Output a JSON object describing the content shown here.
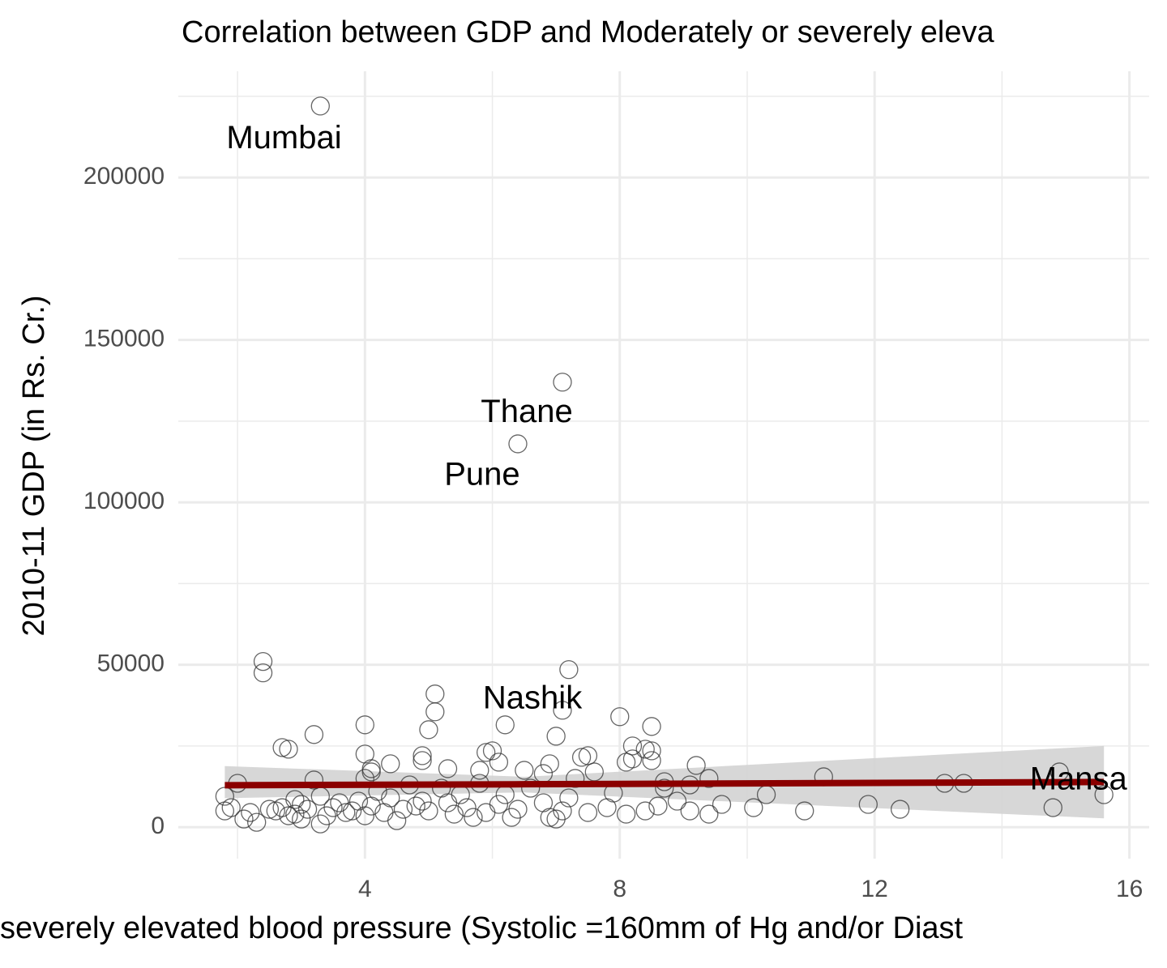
{
  "chart_data": {
    "type": "scatter",
    "title": "Correlation between GDP and Moderately or severely eleva",
    "x_label": "severely elevated blood pressure (Systolic =160mm of Hg and/or Diast",
    "y_label": "2010-11 GDP (in Rs. Cr.)",
    "xlim": [
      1.07,
      16.31
    ],
    "ylim": [
      -9700,
      232700
    ],
    "xticks": [
      4,
      8,
      12,
      16
    ],
    "yticks": [
      0,
      50000,
      100000,
      150000,
      200000
    ],
    "grid": true,
    "minor_grid": true,
    "series": [
      {
        "color": "#333333",
        "x": [
          3.3,
          7.1,
          6.4,
          7.1,
          14.9,
          2.4,
          2.4,
          7.2,
          5.1,
          5.1,
          4.0,
          5.0,
          6.2,
          7.0,
          8.0,
          8.5,
          3.2,
          2.7,
          2.8,
          4.0,
          4.9,
          4.9,
          5.9,
          6.0,
          7.4,
          7.5,
          8.2,
          8.4,
          8.5,
          8.5,
          8.1,
          8.2,
          4.1,
          4.1,
          4.0,
          4.4,
          5.3,
          5.8,
          6.1,
          6.5,
          6.8,
          6.9,
          7.6,
          9.2,
          9.4,
          9.1,
          11.2,
          13.1,
          13.4,
          15.6,
          14.8,
          11.9,
          12.4,
          10.9,
          10.3,
          10.1,
          9.6,
          9.4,
          9.1,
          8.9,
          8.7,
          8.6,
          8.4,
          8.1,
          7.9,
          7.8,
          7.5,
          7.2,
          7.1,
          6.9,
          6.8,
          6.6,
          6.4,
          6.3,
          6.2,
          6.1,
          5.9,
          5.8,
          5.7,
          5.6,
          5.5,
          5.4,
          5.3,
          5.2,
          5.0,
          4.9,
          4.8,
          4.7,
          4.6,
          4.5,
          4.4,
          4.3,
          4.2,
          4.1,
          4.0,
          3.9,
          3.8,
          3.7,
          3.6,
          3.5,
          3.4,
          3.3,
          3.3,
          3.2,
          3.1,
          3.0,
          3.0,
          2.9,
          2.9,
          2.8,
          2.7,
          2.6,
          2.5,
          2.3,
          2.2,
          2.1,
          2.0,
          1.9,
          1.8,
          1.8,
          7.0,
          7.3,
          8.7
        ],
        "values": [
          222000,
          137000,
          118000,
          36000,
          17000,
          51000,
          47500,
          48500,
          41000,
          35500,
          31500,
          30000,
          31500,
          28000,
          34000,
          31000,
          28500,
          24500,
          24000,
          22500,
          22000,
          20500,
          23000,
          23500,
          21500,
          22000,
          25000,
          24000,
          23500,
          20500,
          20000,
          21000,
          18000,
          17000,
          15000,
          19500,
          18000,
          17500,
          20000,
          17500,
          16500,
          19500,
          17000,
          19000,
          15000,
          13000,
          15500,
          13500,
          13500,
          10000,
          6000,
          7000,
          5500,
          5000,
          10000,
          6000,
          7000,
          4000,
          5000,
          8000,
          14000,
          6500,
          5000,
          4000,
          10500,
          6000,
          4500,
          9000,
          5000,
          3000,
          7500,
          12000,
          5500,
          3000,
          10000,
          7000,
          4500,
          13500,
          3000,
          6000,
          10000,
          4000,
          7500,
          12000,
          5000,
          8000,
          6500,
          13000,
          5500,
          2000,
          9000,
          4500,
          11000,
          6500,
          3500,
          8000,
          5000,
          4500,
          7500,
          6000,
          3500,
          9500,
          1000,
          14500,
          5500,
          7000,
          2500,
          8500,
          4000,
          3500,
          6000,
          5000,
          5500,
          1500,
          4500,
          2500,
          13500,
          6000,
          9500,
          5000,
          2500,
          15000,
          12000
        ]
      }
    ],
    "fit": {
      "color": "#8b0000",
      "band_color": "#d3d3d3",
      "x": [
        1.8,
        6.5,
        15.6
      ],
      "y": [
        12900,
        13200,
        13900
      ],
      "lower": [
        8900,
        10700,
        2700
      ],
      "upper": [
        18800,
        15500,
        25000
      ]
    },
    "annotations": [
      {
        "text": "Mumbai",
        "x": 2.73,
        "y": 211700
      },
      {
        "text": "Thane",
        "x": 6.54,
        "y": 127400
      },
      {
        "text": "Pune",
        "x": 5.84,
        "y": 108000
      },
      {
        "text": "Nashik",
        "x": 6.63,
        "y": 39200
      },
      {
        "text": "Mansa",
        "x": 15.2,
        "y": 14200
      }
    ]
  }
}
